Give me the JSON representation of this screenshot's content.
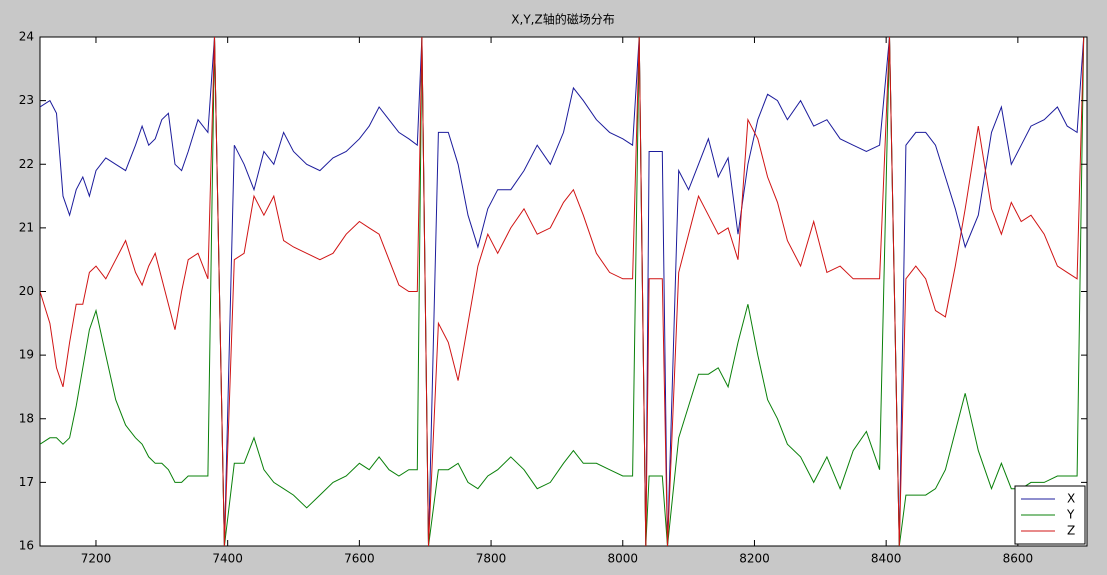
{
  "chart_data": {
    "type": "line",
    "title": "X,Y,Z轴的磁场分布",
    "x": [
      7115,
      7130,
      7140,
      7150,
      7160,
      7170,
      7180,
      7190,
      7200,
      7215,
      7230,
      7245,
      7260,
      7270,
      7280,
      7290,
      7300,
      7310,
      7320,
      7330,
      7340,
      7355,
      7370,
      7380,
      7395,
      7410,
      7425,
      7440,
      7455,
      7470,
      7485,
      7500,
      7520,
      7540,
      7560,
      7580,
      7600,
      7615,
      7630,
      7645,
      7660,
      7675,
      7688,
      7695,
      7705,
      7720,
      7735,
      7750,
      7765,
      7780,
      7795,
      7810,
      7830,
      7850,
      7870,
      7890,
      7910,
      7925,
      7940,
      7960,
      7980,
      8000,
      8015,
      8025,
      8035,
      8040,
      8060,
      8068,
      8085,
      8100,
      8115,
      8130,
      8145,
      8160,
      8175,
      8190,
      8205,
      8220,
      8235,
      8250,
      8270,
      8290,
      8310,
      8330,
      8350,
      8370,
      8390,
      8405,
      8420,
      8430,
      8445,
      8460,
      8475,
      8490,
      8505,
      8520,
      8540,
      8560,
      8575,
      8590,
      8605,
      8620,
      8640,
      8660,
      8675,
      8690,
      8700
    ],
    "series": [
      {
        "name": "X",
        "color": "#1c1c9c",
        "values": [
          22.9,
          23.0,
          22.8,
          21.5,
          21.2,
          21.6,
          21.8,
          21.5,
          21.9,
          22.1,
          22.0,
          21.9,
          22.3,
          22.6,
          22.3,
          22.4,
          22.7,
          22.8,
          22.0,
          21.9,
          22.2,
          22.7,
          22.5,
          24,
          16,
          22.3,
          22.0,
          21.6,
          22.2,
          22.0,
          22.5,
          22.2,
          22.0,
          21.9,
          22.1,
          22.2,
          22.4,
          22.6,
          22.9,
          22.7,
          22.5,
          22.4,
          22.3,
          24,
          16,
          22.5,
          22.5,
          22.0,
          21.2,
          20.7,
          21.3,
          21.6,
          21.6,
          21.9,
          22.3,
          22.0,
          22.5,
          23.2,
          23.0,
          22.7,
          22.5,
          22.4,
          22.3,
          24,
          16,
          22.2,
          22.2,
          16,
          21.9,
          21.6,
          22.0,
          22.4,
          21.8,
          22.1,
          20.9,
          22.0,
          22.7,
          23.1,
          23.0,
          22.7,
          23.0,
          22.6,
          22.7,
          22.4,
          22.3,
          22.2,
          22.3,
          24,
          16,
          22.3,
          22.5,
          22.5,
          22.3,
          21.8,
          21.3,
          20.7,
          21.2,
          22.5,
          22.9,
          22.0,
          22.3,
          22.6,
          22.7,
          22.9,
          22.6,
          22.5,
          24
        ]
      },
      {
        "name": "Y",
        "color": "#0a800a",
        "values": [
          17.6,
          17.7,
          17.7,
          17.6,
          17.7,
          18.2,
          18.8,
          19.4,
          19.7,
          19.0,
          18.3,
          17.9,
          17.7,
          17.6,
          17.4,
          17.3,
          17.3,
          17.2,
          17.0,
          17.0,
          17.1,
          17.1,
          17.1,
          24,
          16,
          17.3,
          17.3,
          17.7,
          17.2,
          17.0,
          16.9,
          16.8,
          16.6,
          16.8,
          17.0,
          17.1,
          17.3,
          17.2,
          17.4,
          17.2,
          17.1,
          17.2,
          17.2,
          24,
          16,
          17.2,
          17.2,
          17.3,
          17.0,
          16.9,
          17.1,
          17.2,
          17.4,
          17.2,
          16.9,
          17.0,
          17.3,
          17.5,
          17.3,
          17.3,
          17.2,
          17.1,
          17.1,
          24,
          16,
          17.1,
          17.1,
          16,
          17.7,
          18.2,
          18.7,
          18.7,
          18.8,
          18.5,
          19.2,
          19.8,
          19.0,
          18.3,
          18.0,
          17.6,
          17.4,
          17.0,
          17.4,
          16.9,
          17.5,
          17.8,
          17.2,
          24,
          16,
          16.8,
          16.8,
          16.8,
          16.9,
          17.2,
          17.8,
          18.4,
          17.5,
          16.9,
          17.3,
          16.9,
          16.9,
          17.0,
          17.0,
          17.1,
          17.1,
          17.1,
          24
        ]
      },
      {
        "name": "Z",
        "color": "#d01414",
        "values": [
          20.0,
          19.5,
          18.8,
          18.5,
          19.2,
          19.8,
          19.8,
          20.3,
          20.4,
          20.2,
          20.5,
          20.8,
          20.3,
          20.1,
          20.4,
          20.6,
          20.2,
          19.8,
          19.4,
          20.0,
          20.5,
          20.6,
          20.2,
          24,
          16,
          20.5,
          20.6,
          21.5,
          21.2,
          21.5,
          20.8,
          20.7,
          20.6,
          20.5,
          20.6,
          20.9,
          21.1,
          21.0,
          20.9,
          20.5,
          20.1,
          20.0,
          20.0,
          24,
          16,
          19.5,
          19.2,
          18.6,
          19.5,
          20.4,
          20.9,
          20.6,
          21.0,
          21.3,
          20.9,
          21.0,
          21.4,
          21.6,
          21.2,
          20.6,
          20.3,
          20.2,
          20.2,
          24,
          16,
          20.2,
          20.2,
          16,
          20.3,
          20.9,
          21.5,
          21.2,
          20.9,
          21.0,
          20.5,
          22.7,
          22.4,
          21.8,
          21.4,
          20.8,
          20.4,
          21.1,
          20.3,
          20.4,
          20.2,
          20.2,
          20.2,
          24,
          16,
          20.2,
          20.4,
          20.2,
          19.7,
          19.6,
          20.4,
          21.3,
          22.6,
          21.3,
          20.9,
          21.4,
          21.1,
          21.2,
          20.9,
          20.4,
          20.3,
          20.2,
          24
        ]
      }
    ],
    "xlim": [
      7115,
      8705
    ],
    "ylim": [
      16,
      24
    ],
    "xticks": [
      7200,
      7400,
      7600,
      7800,
      8000,
      8200,
      8400,
      8600
    ],
    "yticks": [
      16,
      17,
      18,
      19,
      20,
      21,
      22,
      23,
      24
    ],
    "legend": "lower right"
  }
}
